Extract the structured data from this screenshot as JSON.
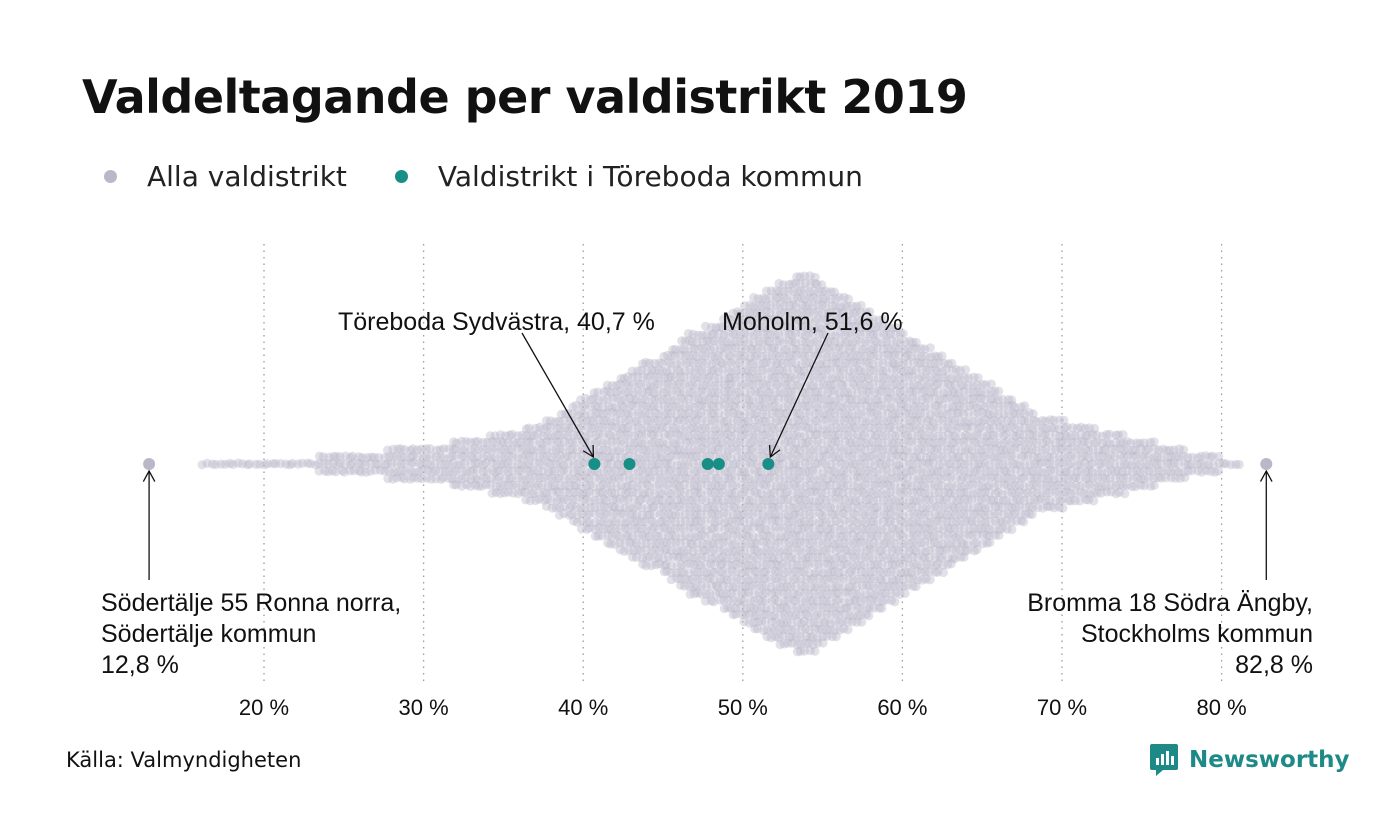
{
  "title": "Valdeltagande per valdistrikt 2019",
  "legend": [
    {
      "label": "Alla valdistrikt",
      "color": "#b9b8c9"
    },
    {
      "label": "Valdistrikt i Töreboda kommun",
      "color": "#178f86"
    }
  ],
  "source": "Källa: Valmyndigheten",
  "brand": {
    "name": "Newsworthy",
    "icon": "newsworthy-logo-icon",
    "color": "#1d8a87"
  },
  "chart_data": {
    "type": "scatter",
    "subtype": "beeswarm",
    "title": "Valdeltagande per valdistrikt 2019",
    "xlabel": "",
    "ylabel": "",
    "xlim": [
      12,
      84
    ],
    "xticks": [
      20,
      30,
      40,
      50,
      60,
      70,
      80
    ],
    "tick_labels": [
      "20 %",
      "30 %",
      "40 %",
      "50 %",
      "60 %",
      "70 %",
      "80 %"
    ],
    "grid": "vertical dotted",
    "legend_position": "top-left",
    "series": [
      {
        "name": "Alla valdistrikt",
        "color": "#b9b8c9",
        "distribution": {
          "min": 12.8,
          "mode": 53.8,
          "max": 82.8
        },
        "highlighted": [
          12.8,
          82.8
        ]
      },
      {
        "name": "Valdistrikt i Töreboda kommun",
        "color": "#178f86",
        "values": [
          40.7,
          42.9,
          47.8,
          48.5,
          51.6
        ]
      }
    ],
    "annotations": [
      {
        "lines": [
          "Töreboda Sydvästra, 40,7 %"
        ],
        "x": 40.7
      },
      {
        "lines": [
          "Moholm, 51,6 %"
        ],
        "x": 51.6
      },
      {
        "lines": [
          "Södertälje 55 Ronna norra,",
          "Södertälje kommun",
          "12,8 %"
        ],
        "x": 12.8
      },
      {
        "lines": [
          "Bromma 18 Södra Ängby,",
          "Stockholms kommun",
          "82,8 %"
        ],
        "x": 82.8
      }
    ]
  }
}
